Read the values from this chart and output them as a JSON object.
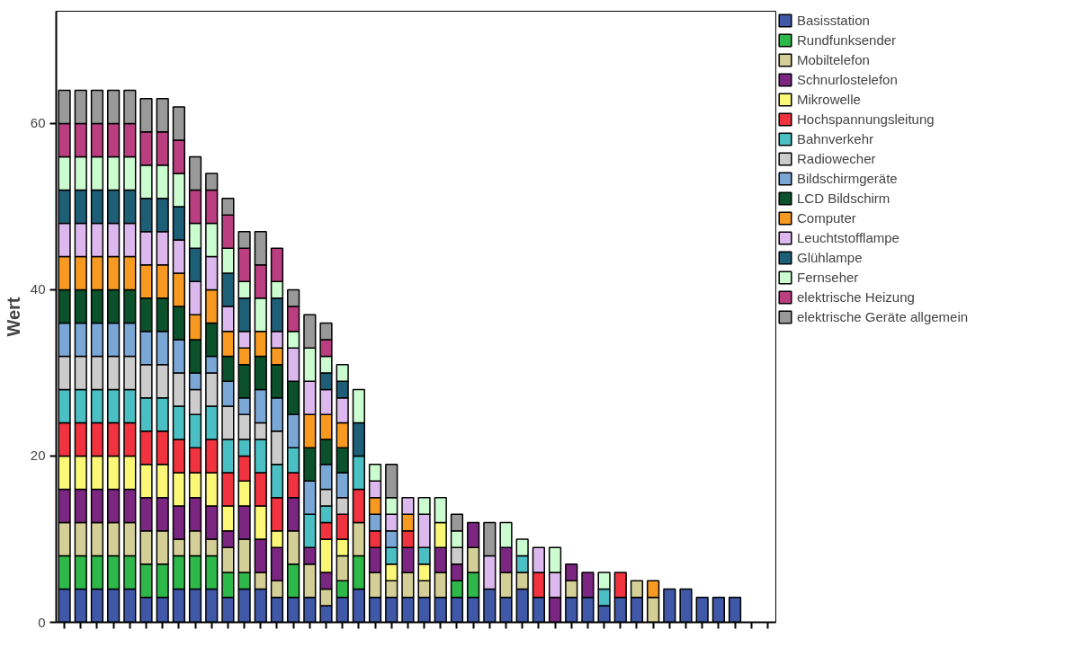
{
  "chart_data": {
    "type": "bar",
    "stacked": true,
    "ylabel": "Wert",
    "ylim": [
      0,
      73.5
    ],
    "yticks": [
      0,
      20,
      40,
      60
    ],
    "grid": false,
    "legend": "top right",
    "tick_labels": "y",
    "categories": [
      null,
      null,
      null,
      null,
      null,
      null,
      null,
      null,
      null,
      null,
      null,
      null,
      null,
      null,
      null,
      null,
      null,
      null,
      null,
      null,
      null,
      null,
      null,
      null,
      null,
      null,
      null,
      null,
      null,
      null,
      null,
      null,
      null,
      null,
      null,
      null,
      null,
      null,
      null,
      null,
      null,
      null,
      null,
      null
    ],
    "series": [
      {
        "name": "Basisstation",
        "color": "#3f58a8",
        "values": [
          4,
          4,
          4,
          4,
          4,
          3,
          3,
          4,
          4,
          4,
          3,
          4,
          4,
          3,
          3,
          3,
          2,
          3,
          4,
          3,
          3,
          3,
          3,
          3,
          3,
          3,
          4,
          3,
          4,
          3,
          null,
          3,
          3,
          2,
          3,
          3,
          null,
          4,
          4,
          3,
          3,
          3,
          null,
          null
        ]
      },
      {
        "name": "Rundfunksender",
        "color": "#2eb84a",
        "values": [
          4,
          4,
          4,
          4,
          4,
          4,
          4,
          4,
          4,
          4,
          3,
          2,
          null,
          null,
          4,
          null,
          null,
          2,
          4,
          null,
          null,
          null,
          null,
          null,
          2,
          3,
          null,
          null,
          null,
          null,
          null,
          null,
          null,
          null,
          null,
          null,
          null,
          null,
          null,
          null,
          null,
          null,
          null,
          null
        ]
      },
      {
        "name": "Mobiltelefon",
        "color": "#d4cf96",
        "values": [
          4,
          4,
          4,
          4,
          4,
          4,
          4,
          2,
          3,
          2,
          3,
          4,
          2,
          2,
          4,
          4,
          2,
          3,
          4,
          3,
          2,
          3,
          2,
          3,
          null,
          3,
          null,
          3,
          2,
          null,
          null,
          2,
          null,
          null,
          null,
          2,
          3,
          null,
          null,
          null,
          null,
          null,
          null,
          null
        ]
      },
      {
        "name": "Schnurlostelefon",
        "color": "#7b2680",
        "values": [
          4,
          4,
          4,
          4,
          4,
          4,
          4,
          4,
          4,
          4,
          2,
          4,
          4,
          4,
          4,
          2,
          2,
          null,
          null,
          3,
          null,
          3,
          null,
          3,
          2,
          3,
          null,
          3,
          null,
          null,
          3,
          2,
          3,
          null,
          null,
          null,
          null,
          null,
          null,
          null,
          null,
          null,
          null,
          null
        ]
      },
      {
        "name": "Mikrowelle",
        "color": "#fbf878",
        "values": [
          4,
          4,
          4,
          4,
          4,
          4,
          4,
          4,
          3,
          4,
          3,
          3,
          4,
          2,
          null,
          null,
          4,
          2,
          null,
          null,
          2,
          null,
          2,
          3,
          null,
          null,
          null,
          null,
          null,
          null,
          null,
          null,
          null,
          null,
          null,
          null,
          null,
          null,
          null,
          null,
          null,
          null,
          null,
          null
        ]
      },
      {
        "name": "Hochspannungsleitung",
        "color": "#f0333e",
        "values": [
          4,
          4,
          4,
          4,
          4,
          4,
          4,
          4,
          3,
          4,
          4,
          3,
          4,
          4,
          3,
          null,
          2,
          3,
          4,
          2,
          null,
          2,
          null,
          null,
          null,
          null,
          null,
          null,
          null,
          3,
          null,
          null,
          null,
          null,
          3,
          null,
          null,
          null,
          null,
          null,
          null,
          null,
          null,
          null
        ]
      },
      {
        "name": "Bahnverkehr",
        "color": "#4abfc4",
        "values": [
          4,
          4,
          4,
          4,
          4,
          4,
          4,
          4,
          4,
          4,
          4,
          2,
          4,
          4,
          3,
          4,
          2,
          null,
          4,
          null,
          2,
          null,
          2,
          null,
          null,
          null,
          null,
          null,
          2,
          null,
          null,
          null,
          null,
          2,
          null,
          null,
          null,
          null,
          null,
          null,
          null,
          null,
          null,
          null
        ]
      },
      {
        "name": "Radiowecher",
        "color": "#cccccc",
        "values": [
          4,
          4,
          4,
          4,
          4,
          4,
          4,
          4,
          3,
          4,
          4,
          3,
          2,
          4,
          null,
          null,
          2,
          2,
          null,
          null,
          null,
          null,
          null,
          null,
          2,
          null,
          null,
          null,
          null,
          null,
          null,
          null,
          null,
          null,
          null,
          null,
          null,
          null,
          null,
          null,
          null,
          null,
          null,
          null
        ]
      },
      {
        "name": "Bildschirmgeräte",
        "color": "#7aa7d6",
        "values": [
          4,
          4,
          4,
          4,
          4,
          4,
          4,
          4,
          2,
          2,
          3,
          2,
          4,
          4,
          4,
          4,
          3,
          3,
          null,
          2,
          2,
          null,
          null,
          null,
          null,
          null,
          null,
          null,
          null,
          null,
          null,
          null,
          null,
          null,
          null,
          null,
          null,
          null,
          null,
          null,
          null,
          null,
          null,
          null
        ]
      },
      {
        "name": "LCD Bildschirm",
        "color": "#0a512c",
        "values": [
          4,
          4,
          4,
          4,
          4,
          4,
          4,
          4,
          4,
          4,
          3,
          4,
          4,
          4,
          4,
          4,
          3,
          3,
          null,
          null,
          null,
          null,
          null,
          null,
          null,
          null,
          null,
          null,
          null,
          null,
          null,
          null,
          null,
          null,
          null,
          null,
          null,
          null,
          null,
          null,
          null,
          null,
          null,
          null
        ]
      },
      {
        "name": "Computer",
        "color": "#f89a22",
        "values": [
          4,
          4,
          4,
          4,
          4,
          4,
          4,
          4,
          3,
          4,
          3,
          2,
          3,
          2,
          null,
          4,
          3,
          3,
          null,
          2,
          null,
          2,
          null,
          null,
          null,
          null,
          null,
          null,
          null,
          null,
          null,
          null,
          null,
          null,
          null,
          null,
          2,
          null,
          null,
          null,
          null,
          null,
          null,
          null
        ]
      },
      {
        "name": "Leuchtstofflampe",
        "color": "#ddb8ee",
        "values": [
          4,
          4,
          4,
          4,
          4,
          4,
          4,
          4,
          4,
          4,
          3,
          2,
          null,
          2,
          4,
          4,
          3,
          3,
          null,
          2,
          2,
          2,
          4,
          null,
          null,
          null,
          4,
          null,
          null,
          3,
          3,
          null,
          null,
          null,
          null,
          null,
          null,
          null,
          null,
          null,
          null,
          null,
          null,
          null
        ]
      },
      {
        "name": "Glühlampe",
        "color": "#1e5f78",
        "values": [
          4,
          4,
          4,
          4,
          4,
          4,
          4,
          4,
          4,
          null,
          4,
          4,
          null,
          4,
          null,
          null,
          2,
          2,
          4,
          null,
          null,
          null,
          null,
          null,
          null,
          null,
          null,
          null,
          null,
          null,
          null,
          null,
          null,
          null,
          null,
          null,
          null,
          null,
          null,
          null,
          null,
          null,
          null,
          null
        ]
      },
      {
        "name": "Fernseher",
        "color": "#cbfdd0",
        "values": [
          4,
          4,
          4,
          4,
          4,
          4,
          4,
          4,
          3,
          4,
          3,
          2,
          4,
          2,
          2,
          4,
          2,
          2,
          4,
          2,
          2,
          null,
          2,
          3,
          2,
          null,
          null,
          3,
          2,
          null,
          3,
          null,
          null,
          2,
          null,
          null,
          null,
          null,
          null,
          null,
          null,
          null,
          null,
          null
        ]
      },
      {
        "name": "elektrische Heizung",
        "color": "#bb3f80",
        "values": [
          4,
          4,
          4,
          4,
          4,
          4,
          4,
          4,
          4,
          4,
          4,
          4,
          4,
          4,
          3,
          null,
          2,
          null,
          null,
          null,
          null,
          null,
          null,
          null,
          null,
          null,
          null,
          null,
          null,
          null,
          null,
          null,
          null,
          null,
          null,
          null,
          null,
          null,
          null,
          null,
          null,
          null,
          null,
          null
        ]
      },
      {
        "name": "elektrische Geräte allgemein",
        "color": "#999999",
        "values": [
          4,
          4,
          4,
          4,
          4,
          4,
          4,
          4,
          4,
          2,
          2,
          2,
          4,
          null,
          2,
          4,
          2,
          null,
          null,
          null,
          4,
          null,
          null,
          null,
          2,
          null,
          4,
          null,
          null,
          null,
          null,
          null,
          null,
          null,
          null,
          null,
          null,
          null,
          null,
          null,
          null,
          null,
          null,
          null
        ]
      }
    ]
  }
}
